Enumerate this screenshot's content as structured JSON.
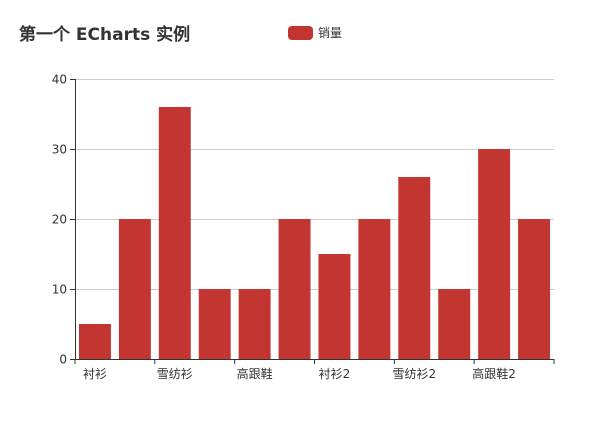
{
  "title": "第一个 ECharts 实例",
  "legend": {
    "label": "销量",
    "color": "#c23531"
  },
  "colors": {
    "bar": "#c23531",
    "grid": "#cccccc",
    "axis": "#333333",
    "label": "#333333"
  },
  "chart_data": {
    "type": "bar",
    "title": "第一个 ECharts 实例",
    "xlabel": "",
    "ylabel": "",
    "ylim": [
      0,
      40
    ],
    "yticks": [
      0,
      10,
      20,
      30,
      40
    ],
    "grid": true,
    "legend_position": "top",
    "x_tick_labels_visible": [
      "衬衫",
      "雪纺衫",
      "高跟鞋",
      "衬衫2",
      "雪纺衫2",
      "高跟鞋2"
    ],
    "categories": [
      "衬衫",
      "",
      "雪纺衫",
      "",
      "高跟鞋",
      "",
      "衬衫2",
      "",
      "雪纺衫2",
      "",
      "高跟鞋2",
      ""
    ],
    "series": [
      {
        "name": "销量",
        "values": [
          5,
          20,
          36,
          10,
          10,
          20,
          15,
          20,
          26,
          10,
          30,
          20
        ]
      }
    ]
  }
}
